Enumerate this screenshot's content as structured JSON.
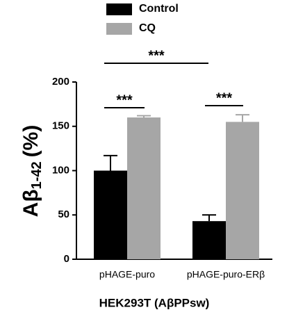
{
  "chart_data": {
    "type": "bar",
    "y_label": {
      "main": "Aβ",
      "subscript": "1-42",
      "suffix": "(%)"
    },
    "x_label": "HEK293T (AβPPsw)",
    "categories": [
      "pHAGE-puro",
      "pHAGE-puro-ERβ"
    ],
    "series": [
      {
        "name": "Control",
        "color": "#000000",
        "values": [
          100,
          43
        ],
        "errors": [
          17,
          7
        ]
      },
      {
        "name": "CQ",
        "color": "#a6a6a6",
        "values": [
          160,
          155
        ],
        "errors": [
          2,
          8
        ]
      }
    ],
    "ylim": [
      0,
      200
    ],
    "yticks": [
      0,
      50,
      100,
      150,
      200
    ],
    "annotations": [
      "***",
      "***",
      "***"
    ]
  }
}
